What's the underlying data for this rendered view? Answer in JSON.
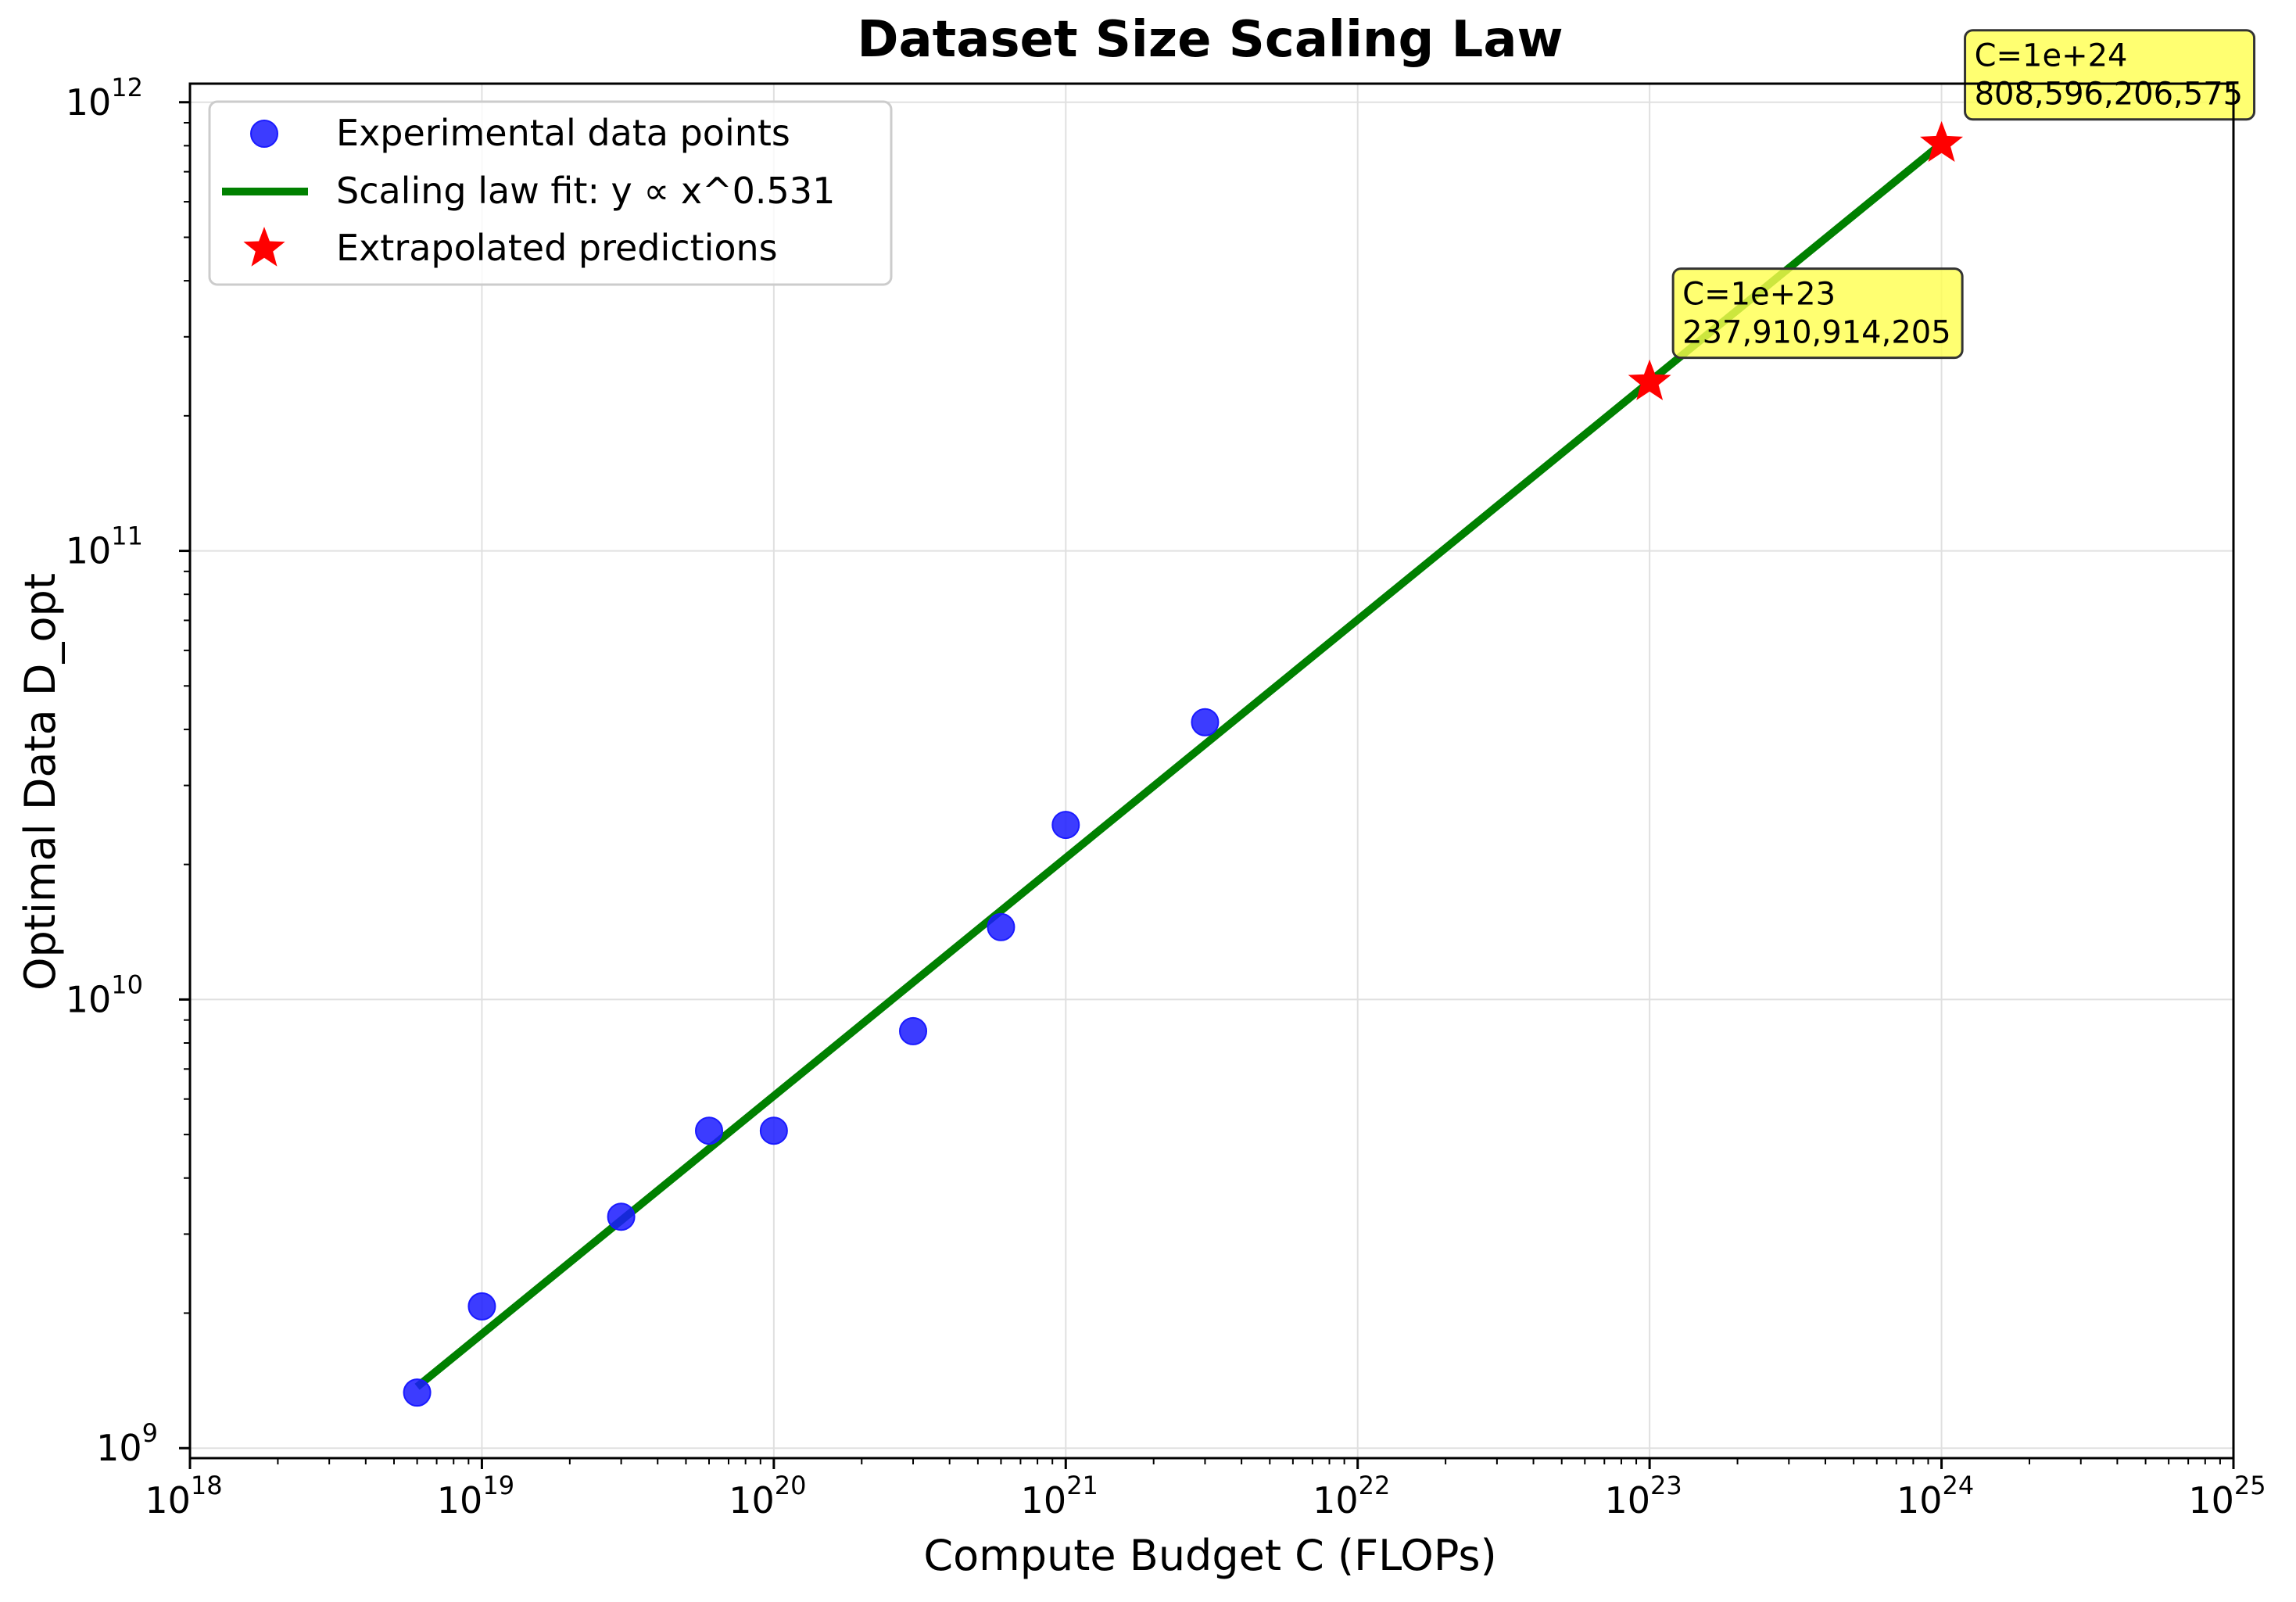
{
  "chart_data": {
    "type": "scatter",
    "title": "Dataset Size Scaling Law",
    "xlabel": "Compute Budget C (FLOPs)",
    "ylabel": "Optimal Data D_opt",
    "x_scale": "log",
    "y_scale": "log",
    "xlim": [
      1e+18,
      1e+25
    ],
    "ylim": [
      950000000.0,
      1100000000000.0
    ],
    "x_ticks": [
      {
        "value": 1e+18,
        "base": "10",
        "exp": "18"
      },
      {
        "value": 1e+19,
        "base": "10",
        "exp": "19"
      },
      {
        "value": 1e+20,
        "base": "10",
        "exp": "20"
      },
      {
        "value": 1e+21,
        "base": "10",
        "exp": "21"
      },
      {
        "value": 1e+22,
        "base": "10",
        "exp": "22"
      },
      {
        "value": 1e+23,
        "base": "10",
        "exp": "23"
      },
      {
        "value": 1e+24,
        "base": "10",
        "exp": "24"
      },
      {
        "value": 1e+25,
        "base": "10",
        "exp": "25"
      }
    ],
    "y_ticks": [
      {
        "value": 1000000000.0,
        "base": "10",
        "exp": "9"
      },
      {
        "value": 10000000000.0,
        "base": "10",
        "exp": "10"
      },
      {
        "value": 100000000000.0,
        "base": "10",
        "exp": "11"
      },
      {
        "value": 1000000000000.0,
        "base": "10",
        "exp": "12"
      }
    ],
    "grid": true,
    "legend_position": "top-left",
    "series": [
      {
        "name": "Experimental data points",
        "kind": "scatter",
        "color": "#1a1aff",
        "x": [
          6e+18,
          1e+19,
          3e+19,
          6e+19,
          1e+20,
          3e+20,
          6e+20,
          1e+21,
          3e+21
        ],
        "y": [
          1330000000.0,
          2070000000.0,
          3280000000.0,
          5100000000.0,
          5100000000.0,
          8500000000.0,
          14500000000.0,
          24500000000.0,
          41500000000.0
        ]
      },
      {
        "name": "Scaling law fit: y ∝ x^0.531",
        "kind": "line",
        "color": "#008000",
        "x": [
          6e+18,
          1e+24
        ],
        "y": [
          1370000000.0,
          808600000000.0
        ]
      },
      {
        "name": "Extrapolated predictions",
        "kind": "star",
        "color": "#ff0000",
        "x": [
          1e+23,
          1e+24
        ],
        "y": [
          237910914205,
          808596206575
        ]
      }
    ],
    "annotations": [
      {
        "x": 1e+23,
        "y": 237910914205,
        "line1": "C=1e+23",
        "line2": "237,910,914,205",
        "color": "#ffff4d"
      },
      {
        "x": 1e+24,
        "y": 808596206575,
        "line1": "C=1e+24",
        "line2": "808,596,206,575",
        "color": "#ffff4d"
      }
    ]
  }
}
